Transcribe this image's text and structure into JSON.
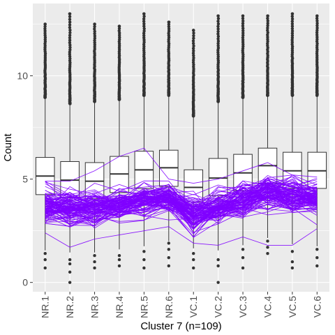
{
  "chart_data": {
    "type": "boxplot",
    "title": "",
    "xlabel": "Cluster 7 (n=109)",
    "ylabel": "Count",
    "ylim": [
      -0.45,
      13.5
    ],
    "yticks": [
      0,
      5,
      10
    ],
    "grid": true,
    "categories": [
      "NR.1",
      "NR.2",
      "NR.3",
      "NR.4",
      "NR.5",
      "NR.6",
      "VC.1",
      "VC.2",
      "VC.3",
      "VC.4",
      "VC.5",
      "VC.6"
    ],
    "boxes": [
      {
        "q1": 4.25,
        "median": 5.15,
        "q3": 6.05,
        "whisker_low": 1.55,
        "whisker_high": 8.9
      },
      {
        "q1": 4.1,
        "median": 4.95,
        "q3": 5.85,
        "whisker_low": 1.45,
        "whisker_high": 8.6
      },
      {
        "q1": 4.05,
        "median": 4.9,
        "q3": 5.8,
        "whisker_low": 1.45,
        "whisker_high": 8.7
      },
      {
        "q1": 4.35,
        "median": 5.25,
        "q3": 6.1,
        "whisker_low": 1.6,
        "whisker_high": 8.8
      },
      {
        "q1": 4.55,
        "median": 5.45,
        "q3": 6.35,
        "whisker_low": 1.75,
        "whisker_high": 9.0
      },
      {
        "q1": 4.65,
        "median": 5.55,
        "q3": 6.4,
        "whisker_low": 2.0,
        "whisker_high": 9.0
      },
      {
        "q1": 3.9,
        "median": 4.6,
        "q3": 5.45,
        "whisker_low": 1.65,
        "whisker_high": 8.0
      },
      {
        "q1": 4.2,
        "median": 5.05,
        "q3": 6.0,
        "whisker_low": 1.55,
        "whisker_high": 8.7
      },
      {
        "q1": 4.45,
        "median": 5.3,
        "q3": 6.2,
        "whisker_low": 1.8,
        "whisker_high": 8.9
      },
      {
        "q1": 4.8,
        "median": 5.65,
        "q3": 6.5,
        "whisker_low": 2.15,
        "whisker_high": 9.0
      },
      {
        "q1": 4.55,
        "median": 5.4,
        "q3": 6.3,
        "whisker_low": 1.85,
        "whisker_high": 9.0
      },
      {
        "q1": 4.55,
        "median": 5.4,
        "q3": 6.3,
        "whisker_low": 1.75,
        "whisker_high": 9.0
      }
    ],
    "outliers_high_max": [
      12.5,
      13.0,
      12.5,
      12.4,
      13.0,
      12.6,
      12.2,
      12.9,
      12.9,
      12.9,
      13.0,
      12.9
    ],
    "outliers_low": [
      [
        0.7,
        1.1,
        1.4
      ],
      [
        0.0,
        0.5,
        0.9,
        1.1
      ],
      [
        0.7,
        1.0,
        1.3
      ],
      [
        0.8,
        1.1,
        1.3
      ],
      [
        0.7,
        1.1,
        1.5
      ],
      [
        0.8,
        1.2,
        1.6,
        1.9
      ],
      [
        0.7,
        1.1,
        1.4
      ],
      [
        0.0,
        0.8,
        1.1
      ],
      [
        0.7,
        1.2,
        1.6
      ],
      [
        1.4,
        1.7,
        2.0
      ],
      [
        0.7,
        1.0,
        1.5
      ],
      [
        0.8,
        1.2,
        1.6
      ]
    ],
    "profile_lines": {
      "color": "#7F00FF",
      "count": 109,
      "center_profile": [
        3.7,
        3.6,
        3.6,
        3.8,
        4.0,
        4.1,
        3.3,
        3.7,
        4.0,
        4.4,
        4.2,
        4.1
      ],
      "spread": [
        0.5,
        0.55,
        0.52,
        0.45,
        0.45,
        0.4,
        0.5,
        0.5,
        0.5,
        0.5,
        0.45,
        0.45
      ],
      "range_min": [
        2.4,
        1.7,
        2.1,
        2.3,
        2.5,
        2.7,
        1.9,
        1.8,
        2.2,
        1.8,
        1.8,
        2.6
      ],
      "range_max": [
        4.9,
        4.9,
        5.4,
        6.1,
        6.5,
        5.0,
        4.8,
        5.0,
        5.4,
        5.8,
        5.2,
        5.1
      ]
    }
  }
}
